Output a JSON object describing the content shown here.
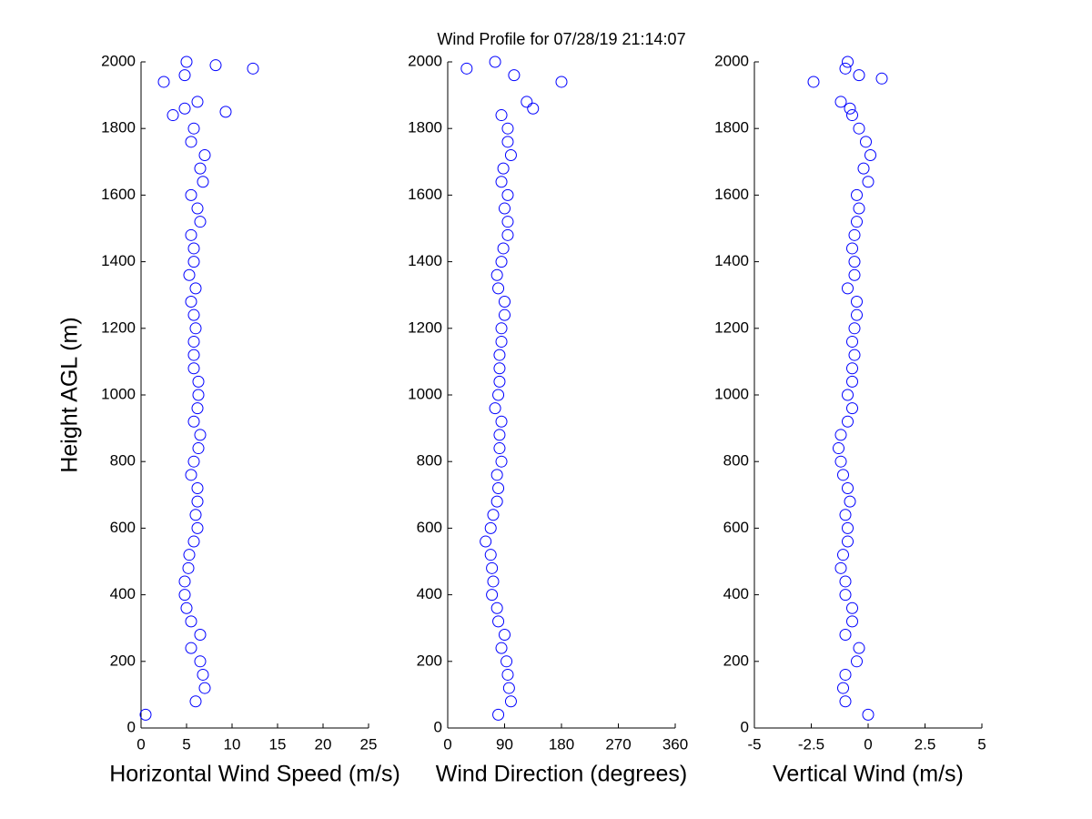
{
  "chart_data": [
    {
      "type": "scatter",
      "title": "Wind Profile for  07/28/19 21:14:07",
      "ylabel": "Height AGL (m)",
      "xlabel": "Horizontal Wind Speed (m/s)",
      "color": "#0000ff",
      "x": [
        0.5,
        6,
        7,
        6.8,
        6.5,
        5.5,
        6.5,
        5.5,
        5,
        4.8,
        4.8,
        5.2,
        5.3,
        5.8,
        6.2,
        6,
        6.2,
        6.2,
        5.5,
        5.8,
        6.3,
        6.5,
        5.8,
        6.2,
        6.3,
        6.3,
        5.8,
        5.8,
        5.8,
        6,
        5.8,
        5.5,
        6,
        5.3,
        5.8,
        5.8,
        5.5,
        6.5,
        6.2,
        5.5,
        6.8,
        6.5,
        7,
        5.5,
        5.8,
        3.5,
        9.3,
        4.8,
        6.2,
        2.5,
        4.8,
        12.3,
        8.2,
        5
      ],
      "y": [
        40,
        80,
        120,
        160,
        200,
        240,
        280,
        320,
        360,
        400,
        440,
        480,
        520,
        560,
        600,
        640,
        680,
        720,
        760,
        800,
        840,
        880,
        920,
        960,
        1000,
        1040,
        1080,
        1120,
        1160,
        1200,
        1240,
        1280,
        1320,
        1360,
        1400,
        1440,
        1480,
        1520,
        1560,
        1600,
        1640,
        1680,
        1720,
        1760,
        1800,
        1840,
        1850,
        1860,
        1880,
        1940,
        1960,
        1980,
        1990,
        2000
      ],
      "xlim": [
        0,
        25
      ],
      "xticks": [
        0,
        5,
        10,
        15,
        20,
        25
      ],
      "ylim": [
        0,
        2000
      ],
      "yticks": [
        0,
        200,
        400,
        600,
        800,
        1000,
        1200,
        1400,
        1600,
        1800,
        2000
      ]
    },
    {
      "type": "scatter",
      "xlabel": "Wind Direction (degrees)",
      "color": "#0000ff",
      "x": [
        80,
        100,
        97,
        95,
        93,
        85,
        90,
        80,
        78,
        70,
        72,
        70,
        68,
        60,
        68,
        72,
        78,
        80,
        78,
        85,
        82,
        82,
        85,
        75,
        80,
        82,
        82,
        82,
        85,
        85,
        90,
        90,
        80,
        78,
        85,
        88,
        95,
        95,
        90,
        95,
        85,
        88,
        100,
        95,
        95,
        85,
        135,
        125,
        180,
        105,
        30,
        75
      ],
      "y": [
        40,
        80,
        120,
        160,
        200,
        240,
        280,
        320,
        360,
        400,
        440,
        480,
        520,
        560,
        600,
        640,
        680,
        720,
        760,
        800,
        840,
        880,
        920,
        960,
        1000,
        1040,
        1080,
        1120,
        1160,
        1200,
        1240,
        1280,
        1320,
        1360,
        1400,
        1440,
        1480,
        1520,
        1560,
        1600,
        1640,
        1680,
        1720,
        1760,
        1800,
        1840,
        1860,
        1880,
        1940,
        1960,
        1980,
        2000
      ],
      "xlim": [
        0,
        360
      ],
      "xticks": [
        0,
        90,
        180,
        270,
        360
      ],
      "ylim": [
        0,
        2000
      ],
      "yticks": [
        0,
        200,
        400,
        600,
        800,
        1000,
        1200,
        1400,
        1600,
        1800,
        2000
      ]
    },
    {
      "type": "scatter",
      "xlabel": "Vertical Wind (m/s)",
      "color": "#0000ff",
      "x": [
        0,
        -1,
        -1.1,
        -1,
        -0.5,
        -0.4,
        -1,
        -0.7,
        -0.7,
        -1,
        -1,
        -1.2,
        -1.1,
        -0.9,
        -0.9,
        -1,
        -0.8,
        -0.9,
        -1.1,
        -1.2,
        -1.3,
        -1.2,
        -0.9,
        -0.7,
        -0.9,
        -0.7,
        -0.7,
        -0.6,
        -0.7,
        -0.6,
        -0.5,
        -0.5,
        -0.9,
        -0.6,
        -0.6,
        -0.7,
        -0.6,
        -0.5,
        -0.4,
        -0.5,
        0,
        -0.2,
        0.1,
        -0.1,
        -0.4,
        -0.7,
        -0.8,
        -1.2,
        -2.4,
        -0.4,
        -1,
        0.6,
        -0.9
      ],
      "y": [
        40,
        80,
        120,
        160,
        200,
        240,
        280,
        320,
        360,
        400,
        440,
        480,
        520,
        560,
        600,
        640,
        680,
        720,
        760,
        800,
        840,
        880,
        920,
        960,
        1000,
        1040,
        1080,
        1120,
        1160,
        1200,
        1240,
        1280,
        1320,
        1360,
        1400,
        1440,
        1480,
        1520,
        1560,
        1600,
        1640,
        1680,
        1720,
        1760,
        1800,
        1840,
        1860,
        1880,
        1940,
        1960,
        1980,
        1950,
        2000
      ],
      "xlim": [
        -5,
        5
      ],
      "xticks": [
        -5,
        -2.5,
        0,
        2.5,
        5
      ],
      "ylim": [
        0,
        2000
      ],
      "yticks": [
        0,
        200,
        400,
        600,
        800,
        1000,
        1200,
        1400,
        1600,
        1800,
        2000
      ]
    }
  ]
}
